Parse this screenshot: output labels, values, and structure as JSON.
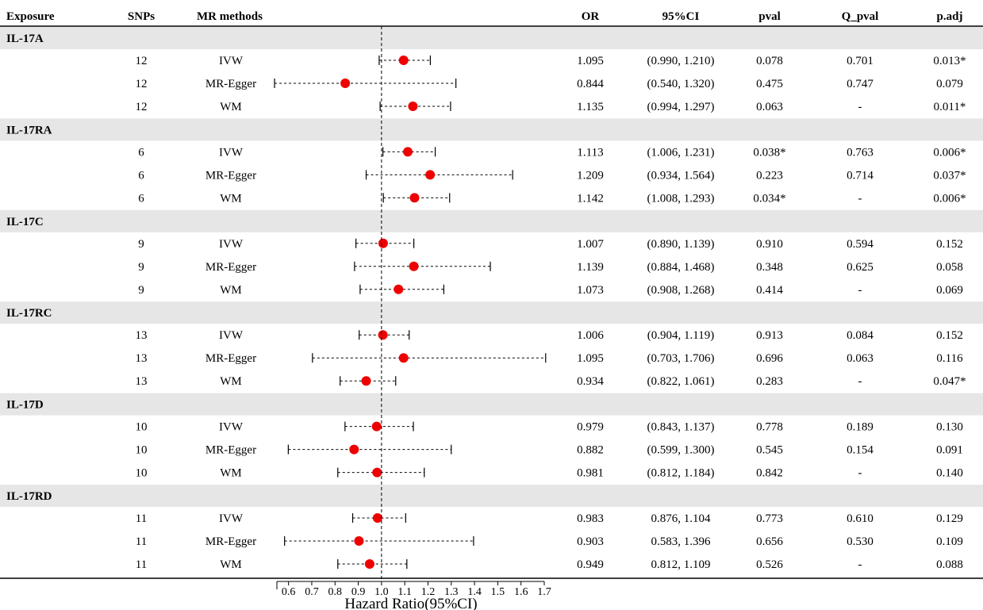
{
  "headers": {
    "exposure": "Exposure",
    "snps": "SNPs",
    "methods": "MR methods",
    "or": "OR",
    "ci": "95%CI",
    "pval": "pval",
    "q_pval": "Q_pval",
    "p_adj": "p.adj"
  },
  "colors": {
    "band": "#e6e6e6",
    "point": "#ee0000",
    "line": "#000000"
  },
  "groups": [
    {
      "name": "IL-17A",
      "rows": [
        {
          "snps": "12",
          "method": "IVW",
          "or": "1.095",
          "ci": "(0.990, 1.210)",
          "pval": "0.078",
          "q_pval": "0.701",
          "p_adj": "0.013*"
        },
        {
          "snps": "12",
          "method": "MR-Egger",
          "or": "0.844",
          "ci": "(0.540, 1.320)",
          "pval": "0.475",
          "q_pval": "0.747",
          "p_adj": "0.079"
        },
        {
          "snps": "12",
          "method": "WM",
          "or": "1.135",
          "ci": "(0.994, 1.297)",
          "pval": "0.063",
          "q_pval": "-",
          "p_adj": "0.011*"
        }
      ]
    },
    {
      "name": "IL-17RA",
      "rows": [
        {
          "snps": "6",
          "method": "IVW",
          "or": "1.113",
          "ci": "(1.006, 1.231)",
          "pval": "0.038*",
          "q_pval": "0.763",
          "p_adj": "0.006*"
        },
        {
          "snps": "6",
          "method": "MR-Egger",
          "or": "1.209",
          "ci": "(0.934, 1.564)",
          "pval": "0.223",
          "q_pval": "0.714",
          "p_adj": "0.037*"
        },
        {
          "snps": "6",
          "method": "WM",
          "or": "1.142",
          "ci": "(1.008, 1.293)",
          "pval": "0.034*",
          "q_pval": "-",
          "p_adj": "0.006*"
        }
      ]
    },
    {
      "name": "IL-17C",
      "rows": [
        {
          "snps": "9",
          "method": "IVW",
          "or": "1.007",
          "ci": "(0.890, 1.139)",
          "pval": "0.910",
          "q_pval": "0.594",
          "p_adj": "0.152"
        },
        {
          "snps": "9",
          "method": "MR-Egger",
          "or": "1.139",
          "ci": "(0.884, 1.468)",
          "pval": "0.348",
          "q_pval": "0.625",
          "p_adj": "0.058"
        },
        {
          "snps": "9",
          "method": "WM",
          "or": "1.073",
          "ci": "(0.908, 1.268)",
          "pval": "0.414",
          "q_pval": "-",
          "p_adj": "0.069"
        }
      ]
    },
    {
      "name": "IL-17RC",
      "rows": [
        {
          "snps": "13",
          "method": "IVW",
          "or": "1.006",
          "ci": "(0.904, 1.119)",
          "pval": "0.913",
          "q_pval": "0.084",
          "p_adj": "0.152"
        },
        {
          "snps": "13",
          "method": "MR-Egger",
          "or": "1.095",
          "ci": "(0.703, 1.706)",
          "pval": "0.696",
          "q_pval": "0.063",
          "p_adj": "0.116"
        },
        {
          "snps": "13",
          "method": "WM",
          "or": "0.934",
          "ci": "(0.822, 1.061)",
          "pval": "0.283",
          "q_pval": "-",
          "p_adj": "0.047*"
        }
      ]
    },
    {
      "name": "IL-17D",
      "rows": [
        {
          "snps": "10",
          "method": "IVW",
          "or": "0.979",
          "ci": "(0.843, 1.137)",
          "pval": "0.778",
          "q_pval": "0.189",
          "p_adj": "0.130"
        },
        {
          "snps": "10",
          "method": "MR-Egger",
          "or": "0.882",
          "ci": "(0.599, 1.300)",
          "pval": "0.545",
          "q_pval": "0.154",
          "p_adj": "0.091"
        },
        {
          "snps": "10",
          "method": "WM",
          "or": "0.981",
          "ci": "(0.812, 1.184)",
          "pval": "0.842",
          "q_pval": "-",
          "p_adj": "0.140"
        }
      ]
    },
    {
      "name": "IL-17RD",
      "rows": [
        {
          "snps": "11",
          "method": "IVW",
          "or": "0.983",
          "ci": "0.876, 1.104",
          "pval": "0.773",
          "q_pval": "0.610",
          "p_adj": "0.129"
        },
        {
          "snps": "11",
          "method": "MR-Egger",
          "or": "0.903",
          "ci": "0.583, 1.396",
          "pval": "0.656",
          "q_pval": "0.530",
          "p_adj": "0.109"
        },
        {
          "snps": "11",
          "method": "WM",
          "or": "0.949",
          "ci": "0.812, 1.109",
          "pval": "0.526",
          "q_pval": "-",
          "p_adj": "0.088"
        }
      ]
    }
  ],
  "chart_data": {
    "type": "forest",
    "xlabel": "Hazard Ratio(95%CI)",
    "xlim": [
      0.55,
      1.7
    ],
    "xticks": [
      "0.6",
      "0.7",
      "0.8",
      "0.9",
      "1.0",
      "1.1",
      "1.2",
      "1.3",
      "1.4",
      "1.5",
      "1.6",
      "1.7"
    ],
    "reference_line": 1.0,
    "series": [
      {
        "exposure": "IL-17A",
        "method": "IVW",
        "estimate": 1.095,
        "lower": 0.99,
        "upper": 1.21
      },
      {
        "exposure": "IL-17A",
        "method": "MR-Egger",
        "estimate": 0.844,
        "lower": 0.54,
        "upper": 1.32
      },
      {
        "exposure": "IL-17A",
        "method": "WM",
        "estimate": 1.135,
        "lower": 0.994,
        "upper": 1.297
      },
      {
        "exposure": "IL-17RA",
        "method": "IVW",
        "estimate": 1.113,
        "lower": 1.006,
        "upper": 1.231
      },
      {
        "exposure": "IL-17RA",
        "method": "MR-Egger",
        "estimate": 1.209,
        "lower": 0.934,
        "upper": 1.564
      },
      {
        "exposure": "IL-17RA",
        "method": "WM",
        "estimate": 1.142,
        "lower": 1.008,
        "upper": 1.293
      },
      {
        "exposure": "IL-17C",
        "method": "IVW",
        "estimate": 1.007,
        "lower": 0.89,
        "upper": 1.139
      },
      {
        "exposure": "IL-17C",
        "method": "MR-Egger",
        "estimate": 1.139,
        "lower": 0.884,
        "upper": 1.468
      },
      {
        "exposure": "IL-17C",
        "method": "WM",
        "estimate": 1.073,
        "lower": 0.908,
        "upper": 1.268
      },
      {
        "exposure": "IL-17RC",
        "method": "IVW",
        "estimate": 1.006,
        "lower": 0.904,
        "upper": 1.119
      },
      {
        "exposure": "IL-17RC",
        "method": "MR-Egger",
        "estimate": 1.095,
        "lower": 0.703,
        "upper": 1.706
      },
      {
        "exposure": "IL-17RC",
        "method": "WM",
        "estimate": 0.934,
        "lower": 0.822,
        "upper": 1.061
      },
      {
        "exposure": "IL-17D",
        "method": "IVW",
        "estimate": 0.979,
        "lower": 0.843,
        "upper": 1.137
      },
      {
        "exposure": "IL-17D",
        "method": "MR-Egger",
        "estimate": 0.882,
        "lower": 0.599,
        "upper": 1.3
      },
      {
        "exposure": "IL-17D",
        "method": "WM",
        "estimate": 0.981,
        "lower": 0.812,
        "upper": 1.184
      },
      {
        "exposure": "IL-17RD",
        "method": "IVW",
        "estimate": 0.983,
        "lower": 0.876,
        "upper": 1.104
      },
      {
        "exposure": "IL-17RD",
        "method": "MR-Egger",
        "estimate": 0.903,
        "lower": 0.583,
        "upper": 1.396
      },
      {
        "exposure": "IL-17RD",
        "method": "WM",
        "estimate": 0.949,
        "lower": 0.812,
        "upper": 1.109
      }
    ]
  }
}
